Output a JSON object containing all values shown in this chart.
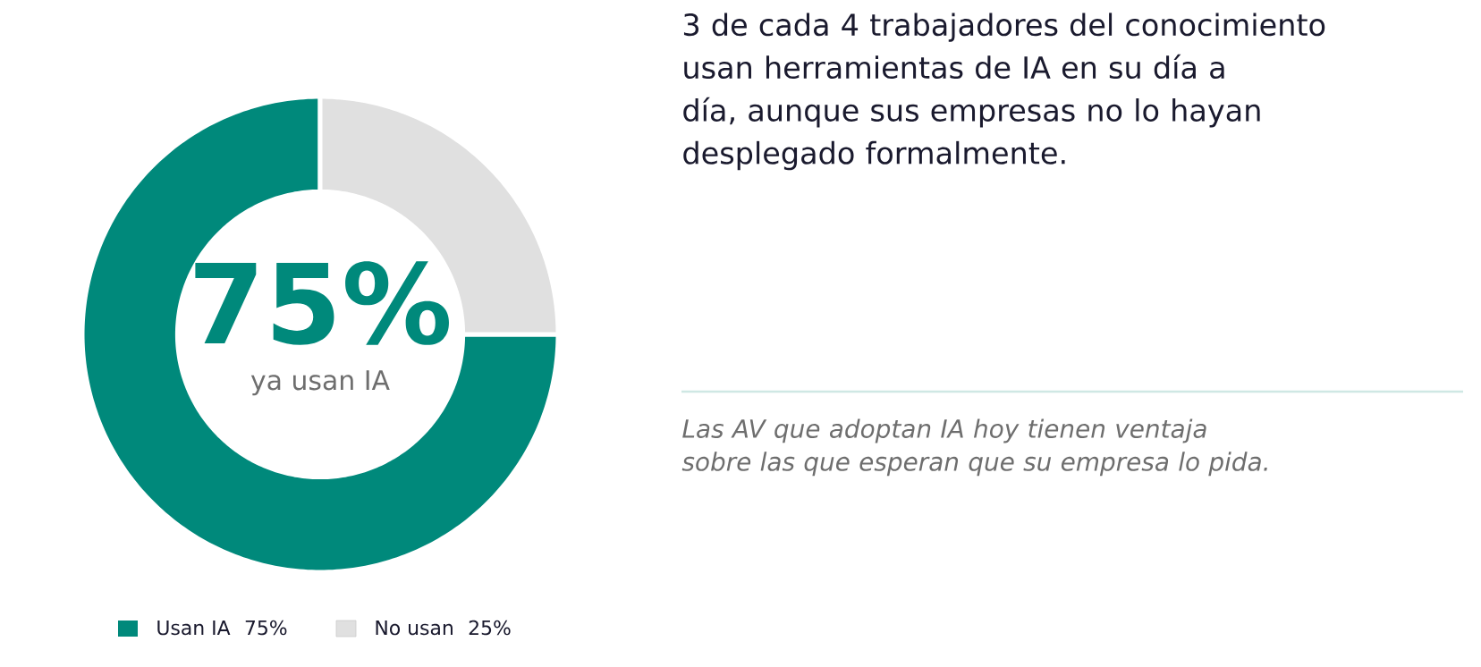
{
  "chart_data": {
    "type": "donut",
    "title": "3 de cada 4 trabajadores del conocimiento usan herramientas de IA en su día a día, aunque sus empresas no lo hayan desplegado formalmente.",
    "categories": [
      "Usan IA",
      "No usan"
    ],
    "values": [
      75,
      25
    ],
    "value_labels": [
      "75%",
      "25%"
    ],
    "colors": [
      "#00897b",
      "#e0e0e0"
    ],
    "legend": "bottom",
    "annotations": [
      "75%",
      "ya usan IA",
      "Las AV que adoptan IA hoy tienen ventaja sobre las que esperan que su empresa lo pida."
    ]
  }
}
